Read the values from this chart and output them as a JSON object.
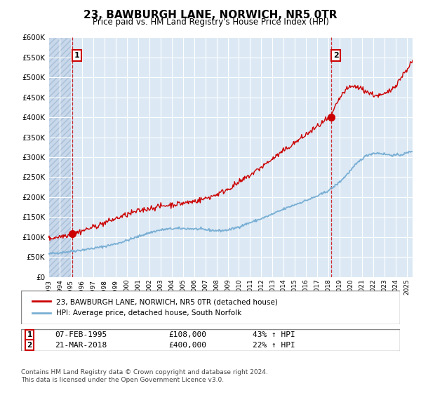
{
  "title": "23, BAWBURGH LANE, NORWICH, NR5 0TR",
  "subtitle": "Price paid vs. HM Land Registry's House Price Index (HPI)",
  "ylim": [
    0,
    600000
  ],
  "yticks": [
    0,
    50000,
    100000,
    150000,
    200000,
    250000,
    300000,
    350000,
    400000,
    450000,
    500000,
    550000,
    600000
  ],
  "xlim_start": 1993.0,
  "xlim_end": 2025.5,
  "bg_color": "#dce9f5",
  "grid_color": "#ffffff",
  "sale1_x": 1995.1,
  "sale1_y": 108000,
  "sale1_label": "07-FEB-1995",
  "sale1_price": "£108,000",
  "sale1_hpi": "43% ↑ HPI",
  "sale2_x": 2018.22,
  "sale2_y": 400000,
  "sale2_label": "21-MAR-2018",
  "sale2_price": "£400,000",
  "sale2_hpi": "22% ↑ HPI",
  "red_line_color": "#cc0000",
  "blue_line_color": "#7aafd4",
  "legend_label1": "23, BAWBURGH LANE, NORWICH, NR5 0TR (detached house)",
  "legend_label2": "HPI: Average price, detached house, South Norfolk",
  "footnote": "Contains HM Land Registry data © Crown copyright and database right 2024.\nThis data is licensed under the Open Government Licence v3.0."
}
